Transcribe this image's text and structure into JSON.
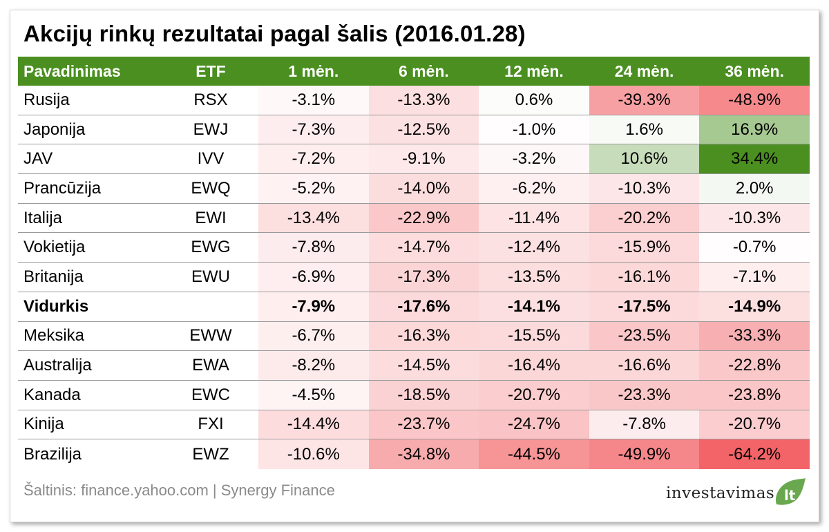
{
  "title": "Akcijų rinkų rezultatai pagal šalis (2016.01.28)",
  "source": "Šaltinis: finance.yahoo.com | Synergy Finance",
  "logo": {
    "main": "investavimas",
    "suffix": "lt"
  },
  "colors": {
    "header_bg": "#4a8f1f",
    "positive_max": "#4a8f1f",
    "negative_max": "#f26468"
  },
  "chart_data": {
    "type": "table",
    "columns": [
      "Pavadinimas",
      "ETF",
      "1 mėn.",
      "6 mėn.",
      "12 mėn.",
      "24 mėn.",
      "36 mėn."
    ],
    "rows": [
      {
        "name": "Rusija",
        "etf": "RSX",
        "values": [
          "-3.1%",
          "-13.3%",
          "0.6%",
          "-39.3%",
          "-48.9%"
        ]
      },
      {
        "name": "Japonija",
        "etf": "EWJ",
        "values": [
          "-7.3%",
          "-12.5%",
          "-1.0%",
          "1.6%",
          "16.9%"
        ]
      },
      {
        "name": "JAV",
        "etf": "IVV",
        "values": [
          "-7.2%",
          "-9.1%",
          "-3.2%",
          "10.6%",
          "34.4%"
        ]
      },
      {
        "name": "Prancūzija",
        "etf": "EWQ",
        "values": [
          "-5.2%",
          "-14.0%",
          "-6.2%",
          "-10.3%",
          "2.0%"
        ]
      },
      {
        "name": "Italija",
        "etf": "EWI",
        "values": [
          "-13.4%",
          "-22.9%",
          "-11.4%",
          "-20.2%",
          "-10.3%"
        ]
      },
      {
        "name": "Vokietija",
        "etf": "EWG",
        "values": [
          "-7.8%",
          "-14.7%",
          "-12.4%",
          "-15.9%",
          "-0.7%"
        ]
      },
      {
        "name": "Britanija",
        "etf": "EWU",
        "values": [
          "-6.9%",
          "-17.3%",
          "-13.5%",
          "-16.1%",
          "-7.1%"
        ]
      },
      {
        "name": "Vidurkis",
        "etf": "",
        "values": [
          "-7.9%",
          "-17.6%",
          "-14.1%",
          "-17.5%",
          "-14.9%"
        ],
        "bold": true
      },
      {
        "name": "Meksika",
        "etf": "EWW",
        "values": [
          "-6.7%",
          "-16.3%",
          "-15.5%",
          "-23.5%",
          "-33.3%"
        ]
      },
      {
        "name": "Australija",
        "etf": "EWA",
        "values": [
          "-8.2%",
          "-14.5%",
          "-16.4%",
          "-16.6%",
          "-22.8%"
        ]
      },
      {
        "name": "Kanada",
        "etf": "EWC",
        "values": [
          "-4.5%",
          "-18.5%",
          "-20.7%",
          "-23.3%",
          "-23.8%"
        ]
      },
      {
        "name": "Kinija",
        "etf": "FXI",
        "values": [
          "-14.4%",
          "-23.7%",
          "-24.7%",
          "-7.8%",
          "-20.7%"
        ]
      },
      {
        "name": "Brazilija",
        "etf": "EWZ",
        "values": [
          "-10.6%",
          "-34.8%",
          "-44.5%",
          "-49.9%",
          "-64.2%"
        ]
      }
    ]
  }
}
